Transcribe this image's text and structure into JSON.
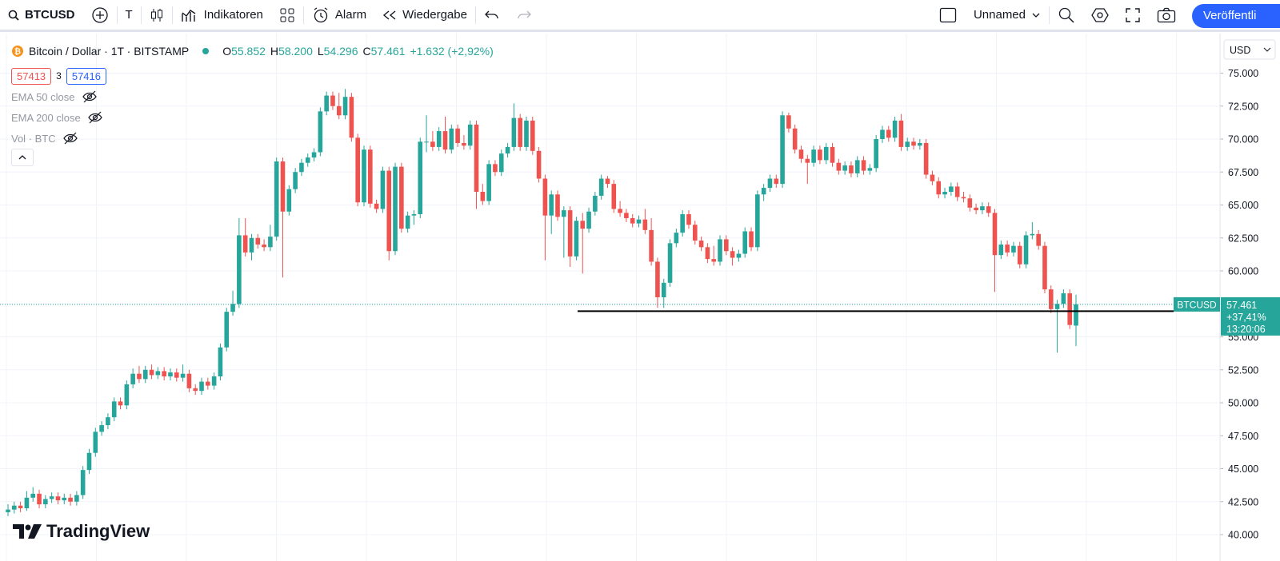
{
  "toolbar": {
    "symbol": "BTCUSD",
    "text_tool": "T",
    "indicators": "Indikatoren",
    "alarm": "Alarm",
    "replay": "Wiedergabe",
    "layout_name": "Unnamed",
    "publish": "Veröffentli"
  },
  "legend": {
    "title": "Bitcoin / Dollar · 1T · BITSTAMP",
    "open_label": "O",
    "open": "55.852",
    "high_label": "H",
    "high": "58.200",
    "low_label": "L",
    "low": "54.296",
    "close_label": "C",
    "close": "57.461",
    "change": "+1.632 (+2,92%)",
    "sell": "57413",
    "spread": "3",
    "buy": "57416",
    "indicators": [
      "EMA 50 close",
      "EMA 200 close",
      "Vol · BTC"
    ]
  },
  "watermark": "TradingView",
  "chart_data": {
    "type": "candlestick",
    "currency": "USD",
    "up_color": "#26a69a",
    "down_color": "#ef5350",
    "grid": true,
    "ylim": [
      38000,
      78000
    ],
    "yticks": [
      {
        "value": 40000,
        "label": "40.000"
      },
      {
        "value": 42500,
        "label": "42.500"
      },
      {
        "value": 45000,
        "label": "45.000"
      },
      {
        "value": 47500,
        "label": "47.500"
      },
      {
        "value": 50000,
        "label": "50.000"
      },
      {
        "value": 52500,
        "label": "52.500"
      },
      {
        "value": 55000,
        "label": "55.000"
      },
      {
        "value": 57500,
        "label": "57.500"
      },
      {
        "value": 60000,
        "label": "60.000"
      },
      {
        "value": 62500,
        "label": "62.500"
      },
      {
        "value": 65000,
        "label": "65.000"
      },
      {
        "value": 67500,
        "label": "67.500"
      },
      {
        "value": 70000,
        "label": "70.000"
      },
      {
        "value": 72500,
        "label": "72.500"
      },
      {
        "value": 75000,
        "label": "75.000"
      }
    ],
    "horizontal_line": 56950,
    "last_price": {
      "symbol": "BTCUSD",
      "value": 57461,
      "value_label": "57.461",
      "change": "+37,41%",
      "countdown": "13:20:06"
    },
    "candles": [
      [
        41700,
        42300,
        41400,
        41900
      ],
      [
        41900,
        42500,
        41600,
        42200
      ],
      [
        42200,
        42500,
        41700,
        42000
      ],
      [
        42000,
        43300,
        41800,
        42800
      ],
      [
        42800,
        43600,
        42500,
        43100
      ],
      [
        43100,
        43400,
        42000,
        42300
      ],
      [
        42300,
        43000,
        42000,
        42700
      ],
      [
        42700,
        43200,
        42400,
        42900
      ],
      [
        42900,
        43200,
        42300,
        42600
      ],
      [
        42600,
        43100,
        42300,
        42800
      ],
      [
        42800,
        43100,
        42200,
        42500
      ],
      [
        42500,
        43300,
        42200,
        43000
      ],
      [
        43000,
        45200,
        42700,
        44900
      ],
      [
        44900,
        46500,
        44600,
        46200
      ],
      [
        46200,
        48100,
        45900,
        47800
      ],
      [
        47800,
        48600,
        47500,
        48300
      ],
      [
        48300,
        49200,
        48000,
        48900
      ],
      [
        48900,
        50400,
        48600,
        50100
      ],
      [
        50100,
        50400,
        49500,
        49800
      ],
      [
        49800,
        51700,
        49500,
        51400
      ],
      [
        51400,
        52600,
        51100,
        52200
      ],
      [
        52200,
        52800,
        51500,
        51800
      ],
      [
        51800,
        52800,
        51500,
        52500
      ],
      [
        52500,
        52900,
        51800,
        52100
      ],
      [
        52100,
        52700,
        51800,
        52400
      ],
      [
        52400,
        52700,
        51700,
        52000
      ],
      [
        52000,
        52600,
        51700,
        52300
      ],
      [
        52300,
        52600,
        51600,
        51900
      ],
      [
        51900,
        52900,
        51600,
        52200
      ],
      [
        52200,
        52500,
        50800,
        51100
      ],
      [
        51100,
        51400,
        50600,
        50900
      ],
      [
        50900,
        51900,
        50600,
        51600
      ],
      [
        51600,
        51900,
        51000,
        51300
      ],
      [
        51300,
        52300,
        51000,
        52000
      ],
      [
        52000,
        54500,
        51700,
        54200
      ],
      [
        54200,
        57200,
        53900,
        56900
      ],
      [
        56900,
        58500,
        56600,
        57500
      ],
      [
        57500,
        64000,
        57200,
        62700
      ],
      [
        62700,
        64000,
        61100,
        61400
      ],
      [
        61400,
        62800,
        60800,
        62500
      ],
      [
        62500,
        62800,
        61700,
        62000
      ],
      [
        62000,
        62400,
        61500,
        61800
      ],
      [
        61800,
        63500,
        61500,
        62600
      ],
      [
        62600,
        68600,
        62300,
        68300
      ],
      [
        68300,
        68600,
        59500,
        64500
      ],
      [
        64500,
        66500,
        64200,
        66200
      ],
      [
        66200,
        67800,
        65900,
        67500
      ],
      [
        67500,
        68500,
        67200,
        68200
      ],
      [
        68200,
        68900,
        67900,
        68600
      ],
      [
        68600,
        69300,
        68300,
        69000
      ],
      [
        69000,
        72400,
        68700,
        72100
      ],
      [
        72100,
        73600,
        71800,
        73300
      ],
      [
        73300,
        73600,
        72200,
        72500
      ],
      [
        72500,
        73500,
        71500,
        71800
      ],
      [
        71800,
        73800,
        71500,
        73200
      ],
      [
        73200,
        73500,
        69800,
        70100
      ],
      [
        70100,
        70400,
        64900,
        65200
      ],
      [
        65200,
        69500,
        64900,
        69200
      ],
      [
        69200,
        69500,
        64800,
        65100
      ],
      [
        65100,
        65400,
        64400,
        64700
      ],
      [
        64700,
        67900,
        64400,
        67600
      ],
      [
        67600,
        67900,
        60800,
        61500
      ],
      [
        61500,
        68200,
        61200,
        67900
      ],
      [
        67900,
        68200,
        62900,
        63200
      ],
      [
        63200,
        64500,
        62900,
        64200
      ],
      [
        64200,
        64600,
        63500,
        64300
      ],
      [
        64300,
        70100,
        64000,
        69800
      ],
      [
        69800,
        71800,
        69000,
        69800
      ],
      [
        69800,
        70600,
        69100,
        69400
      ],
      [
        69400,
        70900,
        69100,
        70600
      ],
      [
        70600,
        71700,
        68900,
        69200
      ],
      [
        69200,
        71100,
        68900,
        70800
      ],
      [
        70800,
        71100,
        69400,
        69700
      ],
      [
        69700,
        70300,
        69200,
        69500
      ],
      [
        69500,
        71400,
        69200,
        71100
      ],
      [
        71100,
        71400,
        64700,
        66000
      ],
      [
        66000,
        66600,
        65000,
        65300
      ],
      [
        65300,
        68400,
        65000,
        68100
      ],
      [
        68100,
        68400,
        67200,
        67500
      ],
      [
        67500,
        69200,
        67200,
        68900
      ],
      [
        68900,
        69700,
        68600,
        69400
      ],
      [
        69400,
        72700,
        69100,
        71600
      ],
      [
        71600,
        71900,
        69100,
        69400
      ],
      [
        69400,
        71700,
        69100,
        71400
      ],
      [
        71400,
        71700,
        68800,
        69100
      ],
      [
        69100,
        69400,
        66700,
        67000
      ],
      [
        67000,
        67300,
        60800,
        64200
      ],
      [
        64200,
        66100,
        62800,
        65800
      ],
      [
        65800,
        66100,
        63800,
        64100
      ],
      [
        64100,
        64900,
        61000,
        64600
      ],
      [
        64600,
        64900,
        60300,
        61100
      ],
      [
        61100,
        64100,
        60800,
        63800
      ],
      [
        63800,
        64400,
        59800,
        63200
      ],
      [
        63200,
        64800,
        62900,
        64500
      ],
      [
        64500,
        66000,
        64200,
        65700
      ],
      [
        65700,
        67300,
        65400,
        67000
      ],
      [
        67000,
        67200,
        66300,
        66600
      ],
      [
        66600,
        66900,
        64400,
        64700
      ],
      [
        64700,
        65300,
        64100,
        64400
      ],
      [
        64400,
        64700,
        63700,
        64000
      ],
      [
        64000,
        64300,
        63300,
        63600
      ],
      [
        63600,
        64200,
        63300,
        63900
      ],
      [
        63900,
        64700,
        62800,
        63100
      ],
      [
        63100,
        64000,
        60400,
        60700
      ],
      [
        60700,
        61000,
        57200,
        58000
      ],
      [
        58000,
        59400,
        57200,
        59100
      ],
      [
        59100,
        62400,
        58800,
        62100
      ],
      [
        62100,
        63200,
        61800,
        62900
      ],
      [
        62900,
        64600,
        62600,
        64300
      ],
      [
        64300,
        64600,
        63200,
        63500
      ],
      [
        63500,
        63800,
        62000,
        62300
      ],
      [
        62300,
        62600,
        61500,
        61800
      ],
      [
        61800,
        62100,
        60600,
        60900
      ],
      [
        60900,
        61900,
        60400,
        60700
      ],
      [
        60700,
        62700,
        60400,
        62400
      ],
      [
        62400,
        62700,
        61200,
        61500
      ],
      [
        61500,
        61800,
        60400,
        61000
      ],
      [
        61000,
        61600,
        60700,
        61300
      ],
      [
        61300,
        63300,
        61000,
        63000
      ],
      [
        63000,
        63300,
        61500,
        61800
      ],
      [
        61800,
        66100,
        61500,
        65800
      ],
      [
        65800,
        66600,
        65300,
        66300
      ],
      [
        66300,
        67300,
        66000,
        67000
      ],
      [
        67000,
        67300,
        66300,
        66600
      ],
      [
        66600,
        72100,
        66300,
        71800
      ],
      [
        71800,
        72000,
        70500,
        70800
      ],
      [
        70800,
        71100,
        68900,
        69200
      ],
      [
        69200,
        69500,
        68200,
        68500
      ],
      [
        68500,
        68800,
        66600,
        68200
      ],
      [
        68200,
        69500,
        67900,
        69200
      ],
      [
        69200,
        69500,
        68100,
        68400
      ],
      [
        68400,
        69700,
        68100,
        69400
      ],
      [
        69400,
        69700,
        67900,
        68200
      ],
      [
        68200,
        68500,
        67300,
        67600
      ],
      [
        67600,
        68300,
        67300,
        68000
      ],
      [
        68000,
        68300,
        67100,
        67400
      ],
      [
        67400,
        68700,
        67100,
        68400
      ],
      [
        68400,
        68700,
        67300,
        67600
      ],
      [
        67600,
        68100,
        67300,
        67800
      ],
      [
        67800,
        70300,
        67500,
        70000
      ],
      [
        70000,
        71000,
        69700,
        70700
      ],
      [
        70700,
        71000,
        69800,
        70100
      ],
      [
        70100,
        71700,
        69800,
        71400
      ],
      [
        71400,
        71900,
        69100,
        69400
      ],
      [
        69400,
        70100,
        69100,
        69800
      ],
      [
        69800,
        70100,
        69200,
        69500
      ],
      [
        69500,
        70000,
        69200,
        69700
      ],
      [
        69700,
        70000,
        67000,
        67300
      ],
      [
        67300,
        67600,
        66500,
        66800
      ],
      [
        66800,
        67100,
        65500,
        65800
      ],
      [
        65800,
        66300,
        65500,
        66000
      ],
      [
        66000,
        66700,
        65700,
        66400
      ],
      [
        66400,
        66700,
        65300,
        65600
      ],
      [
        65600,
        66000,
        65200,
        65500
      ],
      [
        65500,
        65800,
        64500,
        64800
      ],
      [
        64800,
        65100,
        64300,
        64600
      ],
      [
        64600,
        65200,
        64300,
        64900
      ],
      [
        64900,
        65200,
        64100,
        64400
      ],
      [
        64400,
        64700,
        58400,
        61200
      ],
      [
        61200,
        62300,
        60900,
        62000
      ],
      [
        62000,
        62300,
        61100,
        61400
      ],
      [
        61400,
        62200,
        61100,
        61900
      ],
      [
        61900,
        62200,
        60200,
        60500
      ],
      [
        60500,
        63000,
        60200,
        62700
      ],
      [
        62700,
        63700,
        62400,
        62800
      ],
      [
        62800,
        63100,
        61600,
        61900
      ],
      [
        61900,
        62200,
        58300,
        58600
      ],
      [
        58600,
        58900,
        56800,
        57100
      ],
      [
        57100,
        57800,
        53800,
        57500
      ],
      [
        57500,
        58600,
        57200,
        58300
      ],
      [
        58300,
        58600,
        55600,
        55900
      ],
      [
        55852,
        58200,
        54296,
        57461
      ]
    ]
  }
}
